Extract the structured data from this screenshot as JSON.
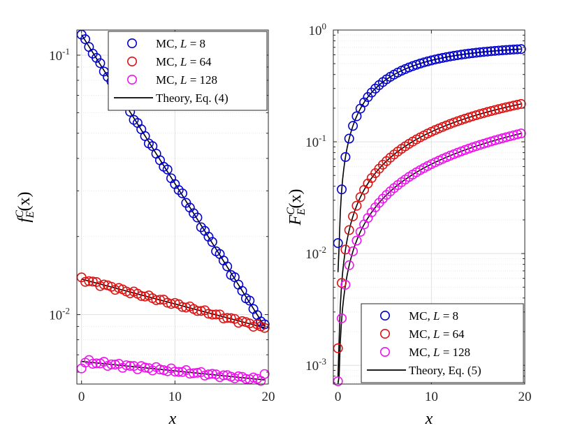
{
  "chart_data": [
    {
      "type": "scatter",
      "id": "left",
      "yscale": "log",
      "xlabel": "x",
      "ylabel": "f_E^C(x)",
      "ylabel_parts": {
        "base": "f",
        "sup": "C",
        "sub": "E",
        "tail": "(x)"
      },
      "xlim": [
        -0.5,
        20
      ],
      "ylim": [
        0.0054,
        0.125
      ],
      "xticks": [
        0,
        10,
        20
      ],
      "xtick_labels": [
        "0",
        "10",
        "20"
      ],
      "yticks": [
        0.01,
        0.1
      ],
      "ytick_labels": [
        {
          "base": "10",
          "exp": "-2"
        },
        {
          "base": "10",
          "exp": "-1"
        }
      ],
      "legend_position": "top-right",
      "legend_entries": [
        {
          "prefix": "MC, ",
          "var": "L",
          "value": " = 8",
          "series": 0
        },
        {
          "prefix": "MC, ",
          "var": "L",
          "value": " = 64",
          "series": 1
        },
        {
          "prefix": "MC, ",
          "var": "L",
          "value": " = 128",
          "series": 2
        },
        {
          "text": "Theory, Eq. (4)",
          "line": true
        }
      ],
      "series": [
        {
          "name": "MC, L = 8",
          "color": "#0000cc",
          "marker": "circle",
          "func": {
            "kind": "exp",
            "y0": 0.12,
            "y1": 0.009
          }
        },
        {
          "name": "MC, L = 64",
          "color": "#dd1111",
          "marker": "circle",
          "func": {
            "kind": "exp",
            "y0": 0.0137,
            "y1": 0.0089
          }
        },
        {
          "name": "MC, L = 128",
          "color": "#ee11ee",
          "marker": "circle",
          "func": {
            "kind": "exp",
            "y0": 0.0066,
            "y1": 0.0056
          },
          "overrides": {
            "0": 0.0062,
            "19.6": 0.0059
          }
        }
      ],
      "x_points": {
        "start": 0,
        "step": 0.4,
        "count": 50
      },
      "theory": {
        "name": "Theory, Eq. (4)",
        "color": "#000000"
      }
    },
    {
      "type": "scatter",
      "id": "right",
      "yscale": "log",
      "xlabel": "x",
      "ylabel": "F_E^C(x)",
      "ylabel_parts": {
        "base": "F",
        "sup": "C",
        "sub": "E",
        "tail": "(x)"
      },
      "xlim": [
        -0.5,
        20
      ],
      "ylim": [
        0.00068,
        1.0
      ],
      "xticks": [
        0,
        10,
        20
      ],
      "xtick_labels": [
        "0",
        "10",
        "20"
      ],
      "yticks": [
        0.001,
        0.01,
        0.1,
        1.0
      ],
      "ytick_labels": [
        {
          "base": "10",
          "exp": "-3"
        },
        {
          "base": "10",
          "exp": "-2"
        },
        {
          "base": "10",
          "exp": "-1"
        },
        {
          "base": "10",
          "exp": "0"
        }
      ],
      "legend_position": "bottom-right",
      "legend_entries": [
        {
          "prefix": "MC, ",
          "var": "L",
          "value": " = 8",
          "series": 0
        },
        {
          "prefix": "MC, ",
          "var": "L",
          "value": " = 64",
          "series": 1
        },
        {
          "prefix": "MC, ",
          "var": "L",
          "value": " = 128",
          "series": 2
        },
        {
          "text": "Theory, Eq. (5)",
          "line": true
        }
      ],
      "series": [
        {
          "name": "MC, L = 8",
          "color": "#0000cc",
          "marker": "circle",
          "func": {
            "kind": "cdf",
            "lambda": 0.1317,
            "scale": 0.7306,
            "y_first": 0.0124
          }
        },
        {
          "name": "MC, L = 64",
          "color": "#dd1111",
          "marker": "circle",
          "func": {
            "kind": "cdf",
            "lambda": 0.022,
            "scale": 0.6223,
            "y_first": 0.00142
          }
        },
        {
          "name": "MC, L = 128",
          "color": "#ee11ee",
          "marker": "circle",
          "func": {
            "kind": "cdf",
            "lambda": 0.00878,
            "scale": 0.7506,
            "y_first": 0.00072
          }
        }
      ],
      "x_points": {
        "start": 0,
        "step": 0.4,
        "count": 50
      },
      "theory": {
        "name": "Theory, Eq. (5)",
        "color": "#000000"
      }
    }
  ]
}
